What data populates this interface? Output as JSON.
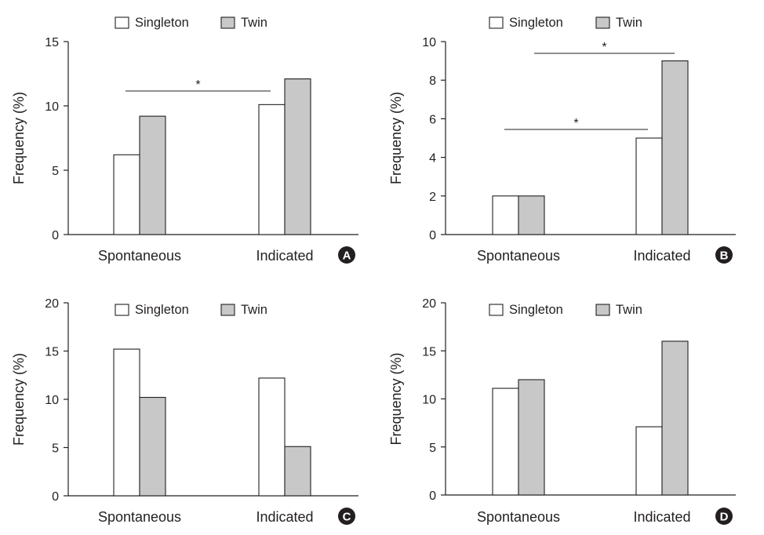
{
  "chart_data": [
    {
      "panel": "A",
      "type": "bar",
      "ylabel": "Frequency (%)",
      "ylim": [
        0,
        15
      ],
      "yticks": [
        0,
        5,
        10,
        15
      ],
      "categories": [
        "Spontaneous",
        "Indicated"
      ],
      "series": [
        {
          "name": "Singleton",
          "color": "#ffffff",
          "values": [
            6.2,
            10.1
          ]
        },
        {
          "name": "Twin",
          "color": "#c8c8c8",
          "values": [
            9.2,
            12.1
          ]
        }
      ],
      "legend": "top-center",
      "grid": false,
      "annotations": [
        {
          "text": "*",
          "from": "Spontaneous",
          "to": "Indicated",
          "y": 11.2
        }
      ]
    },
    {
      "panel": "B",
      "type": "bar",
      "ylabel": "Frequency (%)",
      "ylim": [
        0,
        10
      ],
      "yticks": [
        0,
        2,
        4,
        6,
        8,
        10
      ],
      "categories": [
        "Spontaneous",
        "Indicated"
      ],
      "series": [
        {
          "name": "Singleton",
          "color": "#ffffff",
          "values": [
            2.0,
            5.0
          ]
        },
        {
          "name": "Twin",
          "color": "#c8c8c8",
          "values": [
            2.0,
            9.0
          ]
        }
      ],
      "legend": "top-center",
      "grid": false,
      "annotations": [
        {
          "text": "*",
          "from": "Spontaneous",
          "to": "Indicated",
          "y": 5.4
        },
        {
          "text": "*",
          "from": "Spontaneous",
          "to": "Indicated",
          "y": 9.4
        }
      ]
    },
    {
      "panel": "C",
      "type": "bar",
      "ylabel": "Frequency (%)",
      "ylim": [
        0,
        20
      ],
      "yticks": [
        0,
        5,
        10,
        15,
        20
      ],
      "categories": [
        "Spontaneous",
        "Indicated"
      ],
      "series": [
        {
          "name": "Singleton",
          "color": "#ffffff",
          "values": [
            15.2,
            12.2
          ]
        },
        {
          "name": "Twin",
          "color": "#c8c8c8",
          "values": [
            10.2,
            5.1
          ]
        }
      ],
      "legend": "top-center",
      "grid": false,
      "annotations": []
    },
    {
      "panel": "D",
      "type": "bar",
      "ylabel": "Frequency (%)",
      "ylim": [
        0,
        20
      ],
      "yticks": [
        0,
        5,
        10,
        15,
        20
      ],
      "categories": [
        "Spontaneous",
        "Indicated"
      ],
      "series": [
        {
          "name": "Singleton",
          "color": "#ffffff",
          "values": [
            11.1,
            7.1
          ]
        },
        {
          "name": "Twin",
          "color": "#c8c8c8",
          "values": [
            12.0,
            16.0
          ]
        }
      ],
      "legend": "top-center",
      "grid": false,
      "annotations": []
    }
  ]
}
